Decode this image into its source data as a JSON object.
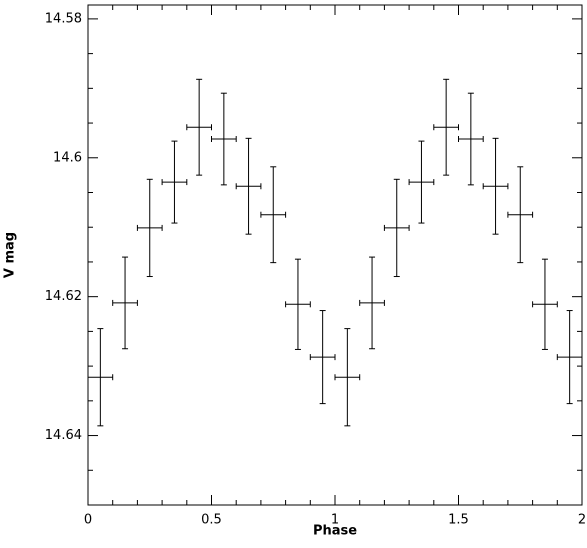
{
  "chart_data": {
    "type": "errorbar",
    "x_label": "Phase",
    "y_label": "V mag",
    "xlim": [
      0,
      2
    ],
    "ylim": [
      14.578,
      14.65
    ],
    "y_inverted": true,
    "xticks": [
      0,
      0.5,
      1,
      1.5,
      2
    ],
    "yticks": [
      14.58,
      14.6,
      14.62,
      14.64
    ],
    "xminorticks": [
      0.1,
      0.2,
      0.3,
      0.4,
      0.6,
      0.7,
      0.8,
      0.9,
      1.1,
      1.2,
      1.3,
      1.4,
      1.6,
      1.7,
      1.8,
      1.9
    ],
    "yminorticks": [
      14.585,
      14.59,
      14.595,
      14.605,
      14.61,
      14.615,
      14.625,
      14.63,
      14.635,
      14.645
    ],
    "color": "#000000",
    "x": [
      0.05,
      0.15,
      0.25,
      0.35,
      0.45,
      0.55,
      0.65,
      0.75,
      0.85,
      0.95,
      1.05,
      1.15,
      1.25,
      1.35,
      1.45,
      1.55,
      1.65,
      1.75,
      1.85,
      1.95
    ],
    "values": [
      14.6316,
      14.6209,
      14.6101,
      14.6035,
      14.5956,
      14.5973,
      14.6041,
      14.6082,
      14.6211,
      14.6287,
      14.6316,
      14.6209,
      14.6101,
      14.6035,
      14.5956,
      14.5973,
      14.6041,
      14.6082,
      14.6211,
      14.6287
    ],
    "yerr": [
      0.007,
      0.0066,
      0.007,
      0.0059,
      0.0069,
      0.0066,
      0.0069,
      0.0069,
      0.0065,
      0.0067,
      0.007,
      0.0066,
      0.007,
      0.0059,
      0.0069,
      0.0066,
      0.0069,
      0.0069,
      0.0065,
      0.0067
    ],
    "xerr": [
      0.05,
      0.05,
      0.05,
      0.05,
      0.05,
      0.05,
      0.05,
      0.05,
      0.05,
      0.05,
      0.05,
      0.05,
      0.05,
      0.05,
      0.05,
      0.05,
      0.05,
      0.05,
      0.05,
      0.05
    ]
  }
}
